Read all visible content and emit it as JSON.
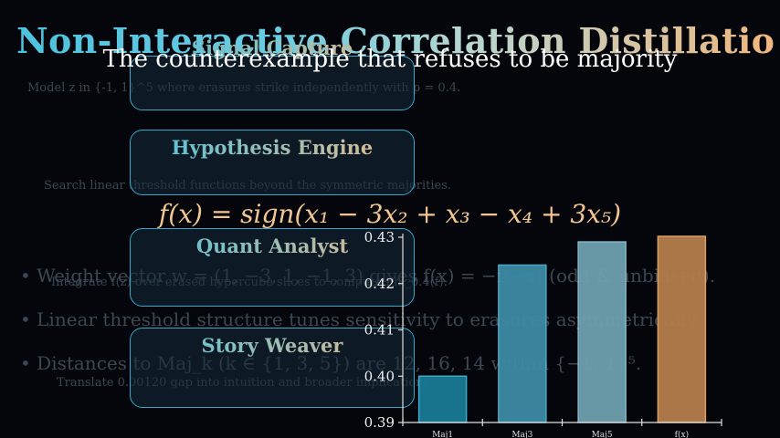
{
  "title": "Non-Interactive Correlation Distillation",
  "subtitle": "The counterexample that refuses to be majority",
  "formula": "f(x) = sign(x₁ − 3x₂ + x₃ − x₄ + 3x₅)",
  "cards": [
    {
      "title": "Signal Capture",
      "description": "Model z in {-1, 1}^5 where erasures strike independently with p = 0.4."
    },
    {
      "title": "Hypothesis Engine",
      "description": "Search linear threshold functions beyond the symmetric majorities."
    },
    {
      "title": "Quant Analyst",
      "description": "Integrate f(z) over erased hypercube slices to compute Phi_0.4(f)."
    },
    {
      "title": "Story Weaver",
      "description": "Translate 0.00120 gap into intuition and broader implications."
    }
  ],
  "bullets": [
    "• Weight vector w = (1, −3, 1, −1, 3) gives f(x) = −f(−x) (odd & unbiased).",
    "• Linear threshold structure tunes sensitivity to erasures asymmetrically.",
    "• Distances to Maj_k (k ∈ {1, 3, 5}) are 12, 16, 14 within {−1, 1}⁵."
  ],
  "chart_data": {
    "type": "bar",
    "categories": [
      "Maj1",
      "Maj3",
      "Maj5",
      "f(x)"
    ],
    "values": [
      0.4,
      0.424,
      0.429,
      0.4302
    ],
    "ylim": [
      0.39,
      0.43
    ],
    "yticks": [
      "0.39",
      "0.40",
      "0.41",
      "0.42",
      "0.43"
    ],
    "colors": [
      "#1a7a94",
      "#3c8aa4",
      "#6e9fae",
      "#b47d4c"
    ],
    "edge_colors": [
      "#3fb3d3",
      "#4fb0cf",
      "#8ec0cf",
      "#e9a869"
    ],
    "grid": false,
    "legend": "none"
  }
}
